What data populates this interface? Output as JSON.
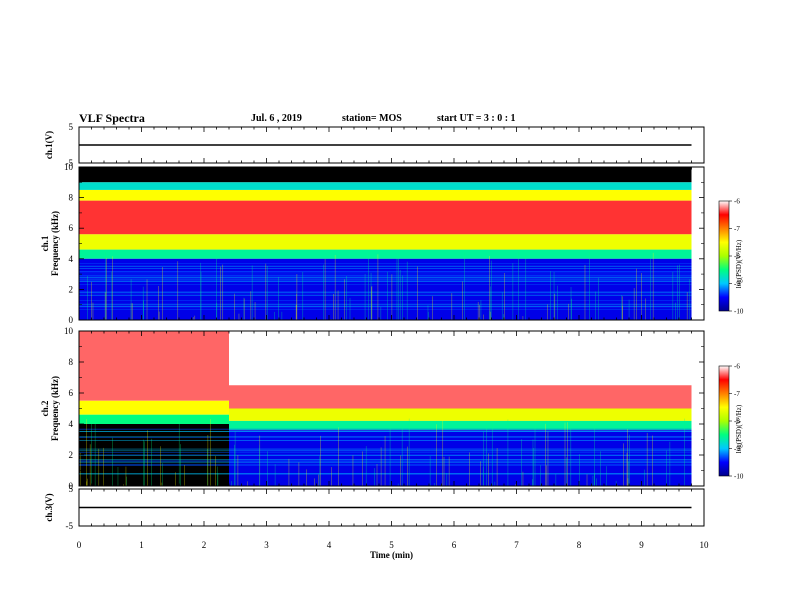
{
  "header": {
    "title": "VLF Spectra",
    "date": "Jul. 6 , 2019",
    "station": "station= MOS",
    "start_ut": "start UT = 3 : 0 : 1"
  },
  "chart_data": [
    {
      "type": "line",
      "panel": "ch1-voltage",
      "ylabel": "ch.1(V)",
      "ylim": [
        -5,
        5
      ],
      "yticks": [
        "5",
        "-5"
      ],
      "xlim": [
        0,
        10
      ],
      "series": [
        {
          "x": [
            0,
            9.8
          ],
          "y": [
            0,
            0
          ]
        }
      ]
    },
    {
      "type": "heatmap",
      "panel": "ch1-spectrogram",
      "ylabel": "ch.1\nFrequency (kHz)",
      "ylim": [
        0,
        10
      ],
      "yticks": [
        "0",
        "2",
        "4",
        "6",
        "8",
        "10"
      ],
      "xlim": [
        0,
        10
      ],
      "data_end_min": 9.8,
      "colorbar": {
        "label": "log(PSD)(V²/Hz)",
        "range": [
          -10,
          -6
        ],
        "ticks": [
          "-6",
          "-7",
          "-8",
          "-9",
          "-10"
        ]
      },
      "bands": [
        {
          "from_khz": 9.0,
          "to_khz": 10.0,
          "level": -11
        },
        {
          "from_khz": 8.5,
          "to_khz": 9.0,
          "level": -8.8
        },
        {
          "from_khz": 7.8,
          "to_khz": 8.5,
          "level": -7.5
        },
        {
          "from_khz": 5.6,
          "to_khz": 7.8,
          "level": -6.4
        },
        {
          "from_khz": 4.6,
          "to_khz": 5.6,
          "level": -7.6
        },
        {
          "from_khz": 4.0,
          "to_khz": 4.6,
          "level": -8.6
        },
        {
          "from_khz": 0.0,
          "to_khz": 4.0,
          "level": -9.6
        }
      ]
    },
    {
      "type": "heatmap",
      "panel": "ch2-spectrogram",
      "ylabel": "ch.2\nFrequency (kHz)",
      "ylim": [
        0,
        10
      ],
      "yticks": [
        "0",
        "2",
        "4",
        "6",
        "8",
        "10"
      ],
      "xlim": [
        0,
        10
      ],
      "data_end_min": 9.8,
      "colorbar": {
        "label": "log(PSD)(V²/Hz)",
        "range": [
          -10,
          -6
        ],
        "ticks": [
          "-6",
          "-7",
          "-8",
          "-9",
          "-10"
        ]
      },
      "segments": [
        {
          "from_min": 0.0,
          "to_min": 2.4,
          "bands": [
            {
              "from_khz": 5.5,
              "to_khz": 10.0,
              "level": -6.3
            },
            {
              "from_khz": 4.6,
              "to_khz": 5.5,
              "level": -7.5
            },
            {
              "from_khz": 4.0,
              "to_khz": 4.6,
              "level": -8.5
            },
            {
              "from_khz": 0.0,
              "to_khz": 4.0,
              "level": -11
            }
          ]
        },
        {
          "from_min": 2.4,
          "to_min": 9.8,
          "bands": [
            {
              "from_khz": 6.5,
              "to_khz": 10.0,
              "level": -5.8
            },
            {
              "from_khz": 5.0,
              "to_khz": 6.5,
              "level": -6.3
            },
            {
              "from_khz": 4.2,
              "to_khz": 5.0,
              "level": -7.6
            },
            {
              "from_khz": 3.6,
              "to_khz": 4.2,
              "level": -8.6
            },
            {
              "from_khz": 0.0,
              "to_khz": 3.6,
              "level": -9.6
            }
          ]
        }
      ]
    },
    {
      "type": "line",
      "panel": "ch3-voltage",
      "ylabel": "ch.3(V)",
      "ylim": [
        -5,
        5
      ],
      "yticks": [
        "5",
        "-5"
      ],
      "xlim": [
        0,
        10
      ],
      "series": [
        {
          "x": [
            0,
            9.8
          ],
          "y": [
            0,
            0
          ]
        }
      ]
    }
  ],
  "xaxis": {
    "label": "Time (min)",
    "ticks": [
      "0",
      "1",
      "2",
      "3",
      "4",
      "5",
      "6",
      "7",
      "8",
      "9",
      "10"
    ]
  },
  "colors": {
    "ink": "#000000",
    "colormap": [
      "#00008b",
      "#0000ff",
      "#00c8ff",
      "#00ff80",
      "#aaff00",
      "#ffff00",
      "#ff8000",
      "#ff0000",
      "#ffffff"
    ]
  }
}
